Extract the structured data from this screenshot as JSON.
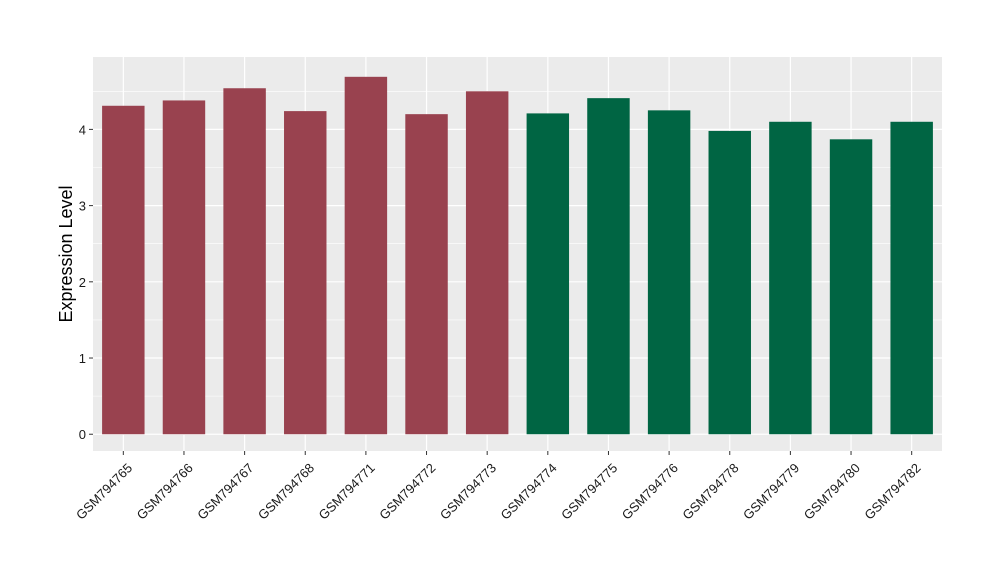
{
  "chart_data": {
    "type": "bar",
    "title": "",
    "xlabel": "",
    "ylabel": "Expression Level",
    "ylim": [
      -0.22,
      4.95
    ],
    "yticks": [
      0,
      1,
      2,
      3,
      4
    ],
    "grid": true,
    "legend": "none",
    "categories": [
      "GSM794765",
      "GSM794766",
      "GSM794767",
      "GSM794768",
      "GSM794771",
      "GSM794772",
      "GSM794773",
      "GSM794774",
      "GSM794775",
      "GSM794776",
      "GSM794778",
      "GSM794779",
      "GSM794780",
      "GSM794782"
    ],
    "values": [
      4.31,
      4.38,
      4.54,
      4.24,
      4.69,
      4.2,
      4.5,
      4.21,
      4.41,
      4.25,
      3.98,
      4.1,
      3.87,
      4.1
    ],
    "bar_colors": [
      "#99424f",
      "#99424f",
      "#99424f",
      "#99424f",
      "#99424f",
      "#99424f",
      "#99424f",
      "#006543",
      "#006543",
      "#006543",
      "#006543",
      "#006543",
      "#006543",
      "#006543"
    ],
    "panel_background": "#ebebeb",
    "grid_color": "#ffffff"
  }
}
